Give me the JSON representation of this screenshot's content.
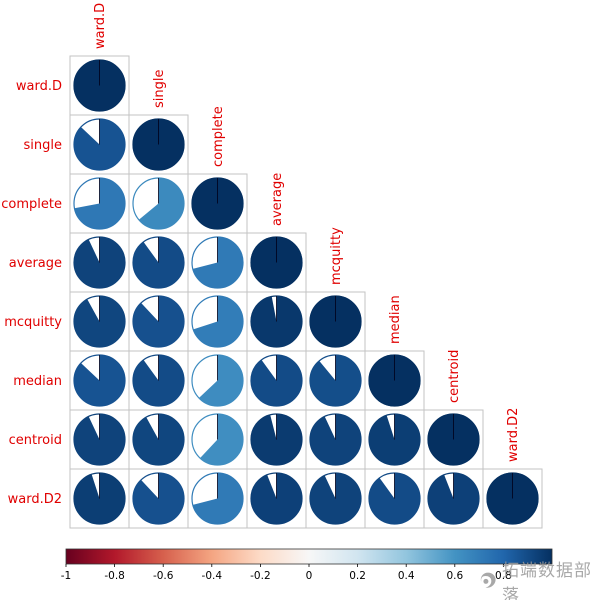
{
  "chart_data": {
    "type": "heatmap",
    "subtype": "correlation-pie-matrix",
    "description": "Lower-triangular correlation matrix rendered as pie glyphs (fill fraction = |correlation|, clockwise from 12 o'clock; blue = positive, red = negative)",
    "labels": [
      "ward.D",
      "single",
      "complete",
      "average",
      "mcquitty",
      "median",
      "centroid",
      "ward.D2"
    ],
    "matrix_lower_triangle": [
      [
        1.0
      ],
      [
        0.87,
        1.0
      ],
      [
        0.72,
        0.64,
        1.0
      ],
      [
        0.93,
        0.9,
        0.71,
        1.0
      ],
      [
        0.92,
        0.88,
        0.7,
        0.97,
        1.0
      ],
      [
        0.87,
        0.9,
        0.63,
        0.9,
        0.89,
        1.0
      ],
      [
        0.93,
        0.92,
        0.62,
        0.96,
        0.93,
        0.95,
        1.0
      ],
      [
        0.95,
        0.88,
        0.71,
        0.94,
        0.93,
        0.9,
        0.94,
        1.0
      ]
    ],
    "label_color": "#e00000",
    "grid_color": "#c3c3c3",
    "colorbar": {
      "min": -1,
      "max": 1,
      "tick_labels": [
        "-1",
        "-0.8",
        "-0.6",
        "-0.4",
        "-0.2",
        "0",
        "0.2",
        "0.4",
        "0.6",
        "0.8"
      ],
      "tick_values": [
        -1,
        -0.8,
        -0.6,
        -0.4,
        -0.2,
        0,
        0.2,
        0.4,
        0.6,
        0.8
      ],
      "tick_color": "#000000",
      "palette_name": "RdBu reversed",
      "colors": [
        "#67001f",
        "#b2182b",
        "#d6604d",
        "#f4a582",
        "#fddbc7",
        "#f7f7f7",
        "#d1e5f0",
        "#92c5de",
        "#4393c3",
        "#2166ac",
        "#053061"
      ]
    },
    "legend_position": "bottom",
    "grid": true
  },
  "watermark": {
    "text": "拓端数据部落"
  }
}
